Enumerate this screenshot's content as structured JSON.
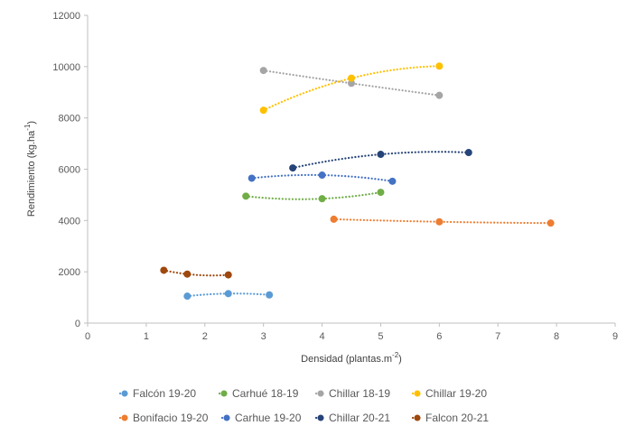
{
  "chart_data": {
    "type": "scatter",
    "title": "",
    "xlabel": "Densidad (plantas.m",
    "xlabel_sup": "-2",
    "xlabel_end": ")",
    "ylabel": "Rendimiento (kg.ha",
    "ylabel_sup": "-1",
    "ylabel_end": ")",
    "xlim": [
      0,
      9
    ],
    "ylim": [
      0,
      12000
    ],
    "x_ticks": [
      0,
      1,
      2,
      3,
      4,
      5,
      6,
      7,
      8,
      9
    ],
    "y_ticks": [
      0,
      2000,
      4000,
      6000,
      8000,
      10000,
      12000
    ],
    "legend_position": "bottom",
    "trendline": "dotted polynomial",
    "series": [
      {
        "name": "Falcón 19-20",
        "color": "#5B9BD5",
        "x": [
          1.7,
          2.4,
          3.1
        ],
        "y": [
          1050,
          1150,
          1100
        ]
      },
      {
        "name": "Carhué 18-19",
        "color": "#70AD47",
        "x": [
          2.7,
          4.0,
          5.0
        ],
        "y": [
          4950,
          4850,
          5100
        ]
      },
      {
        "name": "Chillar 18-19",
        "color": "#A5A5A5",
        "x": [
          3.0,
          4.5,
          6.0
        ],
        "y": [
          9850,
          9350,
          8880
        ]
      },
      {
        "name": "Chillar 19-20",
        "color": "#FFC000",
        "x": [
          3.0,
          4.5,
          6.0
        ],
        "y": [
          8300,
          9550,
          10020
        ]
      },
      {
        "name": "Bonifacio 19-20",
        "color": "#ED7D31",
        "x": [
          4.2,
          6.0,
          7.9
        ],
        "y": [
          4050,
          3950,
          3900
        ]
      },
      {
        "name": "Carhue 19-20",
        "color": "#4472C4",
        "x": [
          2.8,
          4.0,
          5.2
        ],
        "y": [
          5650,
          5770,
          5530
        ]
      },
      {
        "name": "Chillar 20-21",
        "color": "#264478",
        "x": [
          3.5,
          5.0,
          6.5
        ],
        "y": [
          6050,
          6580,
          6650
        ]
      },
      {
        "name": "Falcon 20-21",
        "color": "#9E480E",
        "x": [
          1.3,
          1.7,
          2.4
        ],
        "y": [
          2060,
          1910,
          1880
        ]
      }
    ]
  }
}
